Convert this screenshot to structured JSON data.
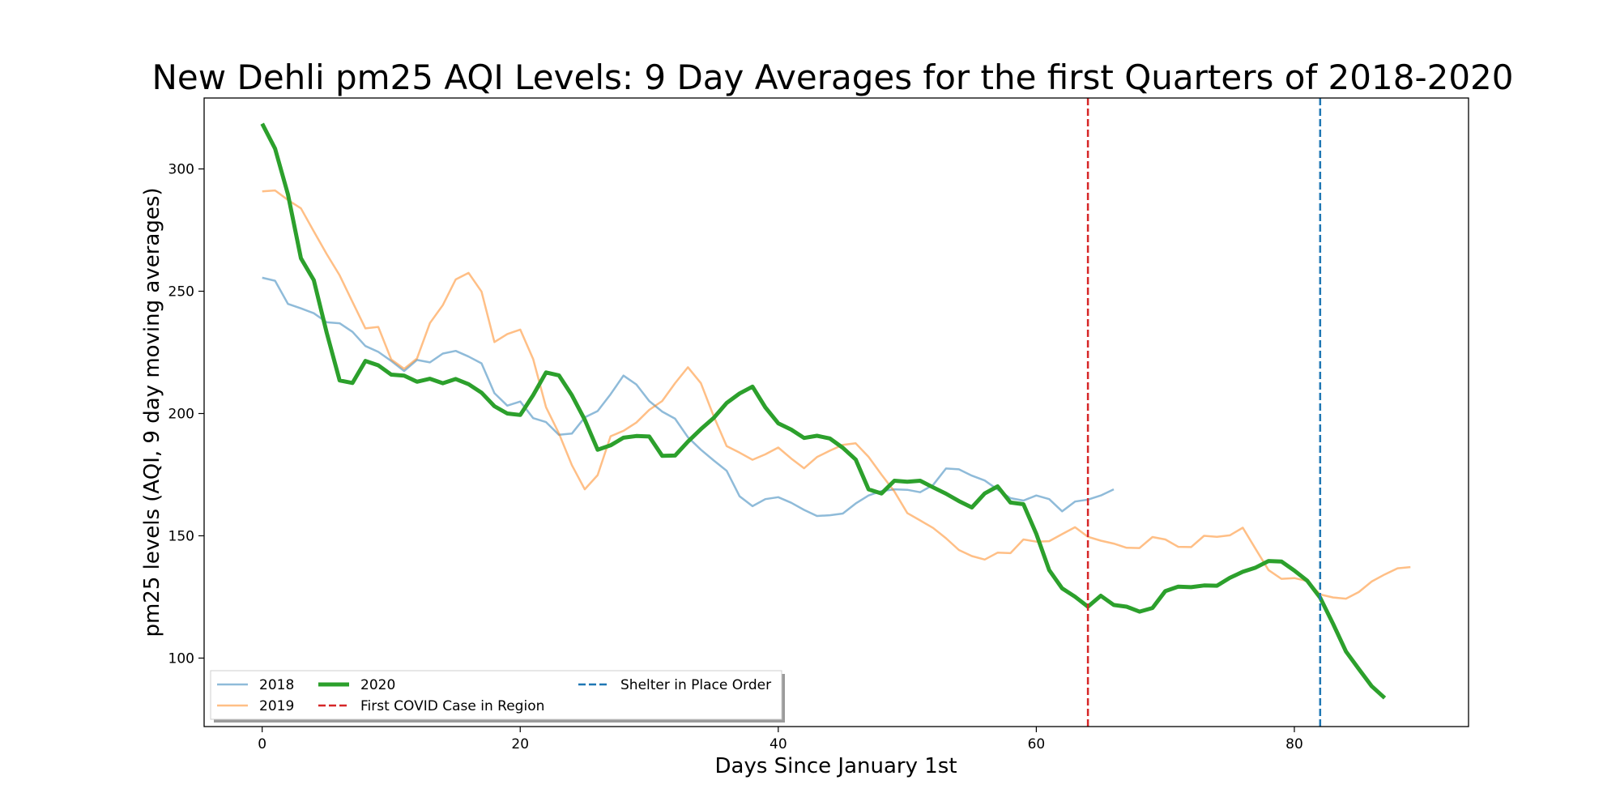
{
  "chart_data": {
    "type": "line",
    "title": "New Dehli pm25 AQI Levels: 9 Day Averages for the first Quarters of 2018-2020",
    "xlabel": "Days Since January 1st",
    "ylabel": "pm25 levels (AQI, 9 day moving averages)",
    "xlim": [
      -4.5,
      93.5
    ],
    "ylim": [
      72,
      329
    ],
    "x_ticks": [
      0,
      20,
      40,
      60,
      80
    ],
    "y_ticks": [
      100,
      150,
      200,
      250,
      300
    ],
    "grid": false,
    "legend": {
      "placement": "lower-left",
      "columns": 3
    },
    "series": [
      {
        "name": "2018",
        "color": "#1f77b4",
        "alpha": 0.5,
        "width": 2.5,
        "x": [
          0,
          1,
          2,
          3,
          4,
          5,
          6,
          7,
          8,
          9,
          10,
          11,
          12,
          13,
          14,
          15,
          16,
          17,
          18,
          19,
          20,
          21,
          22,
          23,
          24,
          25,
          26,
          27,
          28,
          29,
          30,
          31,
          32,
          33,
          34,
          35,
          36,
          37,
          38,
          39,
          40,
          41,
          42,
          43,
          44,
          45,
          46,
          47,
          48,
          49,
          50,
          51,
          52,
          53,
          54,
          55,
          56,
          57,
          58,
          59,
          60,
          61,
          62,
          63,
          64,
          65,
          66
        ],
        "values": [
          255.5,
          254.3,
          244.8,
          243.0,
          241.0,
          237.3,
          236.9,
          233.4,
          227.6,
          225.2,
          221.5,
          217.4,
          221.9,
          220.9,
          224.5,
          225.6,
          223.3,
          220.5,
          208.3,
          203.2,
          204.9,
          198.1,
          196.5,
          191.3,
          191.8,
          198.4,
          201.0,
          207.9,
          215.5,
          211.9,
          205.1,
          200.8,
          197.9,
          190.3,
          185.2,
          180.8,
          176.6,
          166.2,
          162.1,
          165.0,
          165.8,
          163.5,
          160.6,
          158.1,
          158.4,
          159.1,
          163.2,
          166.5,
          168.3,
          169.0,
          168.8,
          167.8,
          170.8,
          177.5,
          177.2,
          174.6,
          172.6,
          168.9,
          165.4,
          164.4,
          166.5,
          165.0,
          160.0,
          164.0,
          164.8,
          166.5,
          169.0
        ]
      },
      {
        "name": "2019",
        "color": "#ff7f0e",
        "alpha": 0.5,
        "width": 2.5,
        "x": [
          0,
          1,
          2,
          3,
          4,
          5,
          6,
          7,
          8,
          9,
          10,
          11,
          12,
          13,
          14,
          15,
          16,
          17,
          18,
          19,
          20,
          21,
          22,
          23,
          24,
          25,
          26,
          27,
          28,
          29,
          30,
          31,
          32,
          33,
          34,
          35,
          36,
          37,
          38,
          39,
          40,
          41,
          42,
          43,
          44,
          45,
          46,
          47,
          48,
          49,
          50,
          51,
          52,
          53,
          54,
          55,
          56,
          57,
          58,
          59,
          60,
          61,
          62,
          63,
          64,
          65,
          66,
          67,
          68,
          69,
          70,
          71,
          72,
          73,
          74,
          75,
          76,
          77,
          78,
          79,
          80,
          81,
          82,
          83,
          84,
          85,
          86,
          87,
          88,
          89
        ],
        "values": [
          290.8,
          291.2,
          287.3,
          283.9,
          274.5,
          265.2,
          256.5,
          245.6,
          234.8,
          235.4,
          222.1,
          218.3,
          222.5,
          237.0,
          244.3,
          254.8,
          257.5,
          249.8,
          229.2,
          232.5,
          234.3,
          222.3,
          202.6,
          191.9,
          178.9,
          169.0,
          174.8,
          190.7,
          192.9,
          196.3,
          201.5,
          205.1,
          212.4,
          218.9,
          212.4,
          198.8,
          186.7,
          184.0,
          181.1,
          183.3,
          186.1,
          181.6,
          177.6,
          182.2,
          184.8,
          187.2,
          187.8,
          182.3,
          175.0,
          168.1,
          159.3,
          156.3,
          153.2,
          149.0,
          144.2,
          141.7,
          140.3,
          143.1,
          142.9,
          148.5,
          147.6,
          147.8,
          150.7,
          153.5,
          149.6,
          148.0,
          146.8,
          145.1,
          145.0,
          149.5,
          148.5,
          145.5,
          145.4,
          150.0,
          149.6,
          150.2,
          153.3,
          144.6,
          136.0,
          132.4,
          132.7,
          131.5,
          126.0,
          124.8,
          124.3,
          127.0,
          131.3,
          134.2,
          136.7,
          137.2
        ]
      },
      {
        "name": "2020",
        "color": "#2ca02c",
        "alpha": 1,
        "width": 5,
        "x": [
          0,
          1,
          2,
          3,
          4,
          5,
          6,
          7,
          8,
          9,
          10,
          11,
          12,
          13,
          14,
          15,
          16,
          17,
          18,
          19,
          20,
          21,
          22,
          23,
          24,
          25,
          26,
          27,
          28,
          29,
          30,
          31,
          32,
          33,
          34,
          35,
          36,
          37,
          38,
          39,
          40,
          41,
          42,
          43,
          44,
          45,
          46,
          47,
          48,
          49,
          50,
          51,
          52,
          53,
          54,
          55,
          56,
          57,
          58,
          59,
          60,
          61,
          62,
          63,
          64,
          65,
          66,
          67,
          68,
          69,
          70,
          71,
          72,
          73,
          74,
          75,
          76,
          77,
          78,
          79,
          80,
          81,
          82,
          83,
          84,
          85,
          86,
          87
        ],
        "values": [
          318.5,
          308.3,
          289.6,
          263.5,
          254.5,
          233.1,
          213.5,
          212.5,
          221.5,
          219.7,
          215.9,
          215.5,
          213.0,
          214.2,
          212.4,
          214.1,
          212.0,
          208.5,
          203.0,
          200.0,
          199.4,
          207.5,
          216.8,
          215.6,
          207.5,
          197.5,
          185.2,
          187.0,
          190.1,
          190.8,
          190.6,
          182.7,
          182.8,
          188.5,
          193.6,
          198.2,
          204.3,
          208.2,
          211.0,
          202.5,
          196.0,
          193.4,
          190.0,
          190.9,
          189.8,
          186.0,
          181.2,
          169.0,
          167.3,
          172.5,
          172.1,
          172.5,
          169.8,
          167.2,
          164.2,
          161.6,
          167.3,
          170.2,
          163.6,
          162.9,
          150.8,
          136.0,
          128.5,
          125.1,
          121.0,
          125.5,
          121.7,
          121.0,
          119.0,
          120.5,
          127.4,
          129.2,
          129.0,
          129.7,
          129.6,
          132.8,
          135.3,
          137.0,
          139.7,
          139.5,
          135.8,
          131.6,
          124.7,
          114.0,
          102.7,
          95.5,
          88.5,
          83.7
        ]
      }
    ],
    "vlines": [
      {
        "name": "First COVID Case in Region",
        "x": 64,
        "color": "#d62728",
        "style": "dashed"
      },
      {
        "name": "Shelter in Place Order",
        "x": 82,
        "color": "#1f77b4",
        "style": "dashed"
      }
    ]
  }
}
